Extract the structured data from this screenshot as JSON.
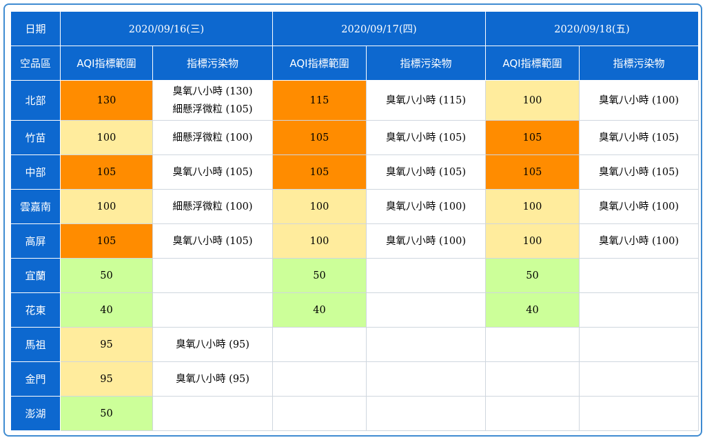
{
  "header": {
    "date_label": "日期",
    "region_label": "空品區",
    "dates": [
      "2020/09/16(三)",
      "2020/09/17(四)",
      "2020/09/18(五)"
    ],
    "aqi_range_label": "AQI指標範圍",
    "pollutant_label": "指標污染物"
  },
  "colors": {
    "header_bg": "#0d68cf",
    "orange": "#ff8c00",
    "yellow": "#ffec9d",
    "green": "#ccff99"
  },
  "rows": [
    {
      "region": "北部",
      "days": [
        {
          "aqi": "130",
          "level": "orange",
          "pollutants": [
            "臭氧八小時 (130)",
            "細懸浮微粒 (105)"
          ]
        },
        {
          "aqi": "115",
          "level": "orange",
          "pollutants": [
            "臭氧八小時 (115)"
          ]
        },
        {
          "aqi": "100",
          "level": "yellow",
          "pollutants": [
            "臭氧八小時 (100)"
          ]
        }
      ]
    },
    {
      "region": "竹苗",
      "days": [
        {
          "aqi": "100",
          "level": "yellow",
          "pollutants": [
            "細懸浮微粒 (100)"
          ]
        },
        {
          "aqi": "105",
          "level": "orange",
          "pollutants": [
            "臭氧八小時 (105)"
          ]
        },
        {
          "aqi": "105",
          "level": "orange",
          "pollutants": [
            "臭氧八小時 (105)"
          ]
        }
      ]
    },
    {
      "region": "中部",
      "days": [
        {
          "aqi": "105",
          "level": "orange",
          "pollutants": [
            "臭氧八小時 (105)"
          ]
        },
        {
          "aqi": "105",
          "level": "orange",
          "pollutants": [
            "臭氧八小時 (105)"
          ]
        },
        {
          "aqi": "105",
          "level": "orange",
          "pollutants": [
            "臭氧八小時 (105)"
          ]
        }
      ]
    },
    {
      "region": "雲嘉南",
      "days": [
        {
          "aqi": "100",
          "level": "yellow",
          "pollutants": [
            "細懸浮微粒 (100)"
          ]
        },
        {
          "aqi": "100",
          "level": "yellow",
          "pollutants": [
            "臭氧八小時 (100)"
          ]
        },
        {
          "aqi": "100",
          "level": "yellow",
          "pollutants": [
            "臭氧八小時 (100)"
          ]
        }
      ]
    },
    {
      "region": "高屏",
      "days": [
        {
          "aqi": "105",
          "level": "orange",
          "pollutants": [
            "臭氧八小時 (105)"
          ]
        },
        {
          "aqi": "100",
          "level": "yellow",
          "pollutants": [
            "臭氧八小時 (100)"
          ]
        },
        {
          "aqi": "100",
          "level": "yellow",
          "pollutants": [
            "臭氧八小時 (100)"
          ]
        }
      ]
    },
    {
      "region": "宜蘭",
      "days": [
        {
          "aqi": "50",
          "level": "green",
          "pollutants": []
        },
        {
          "aqi": "50",
          "level": "green",
          "pollutants": []
        },
        {
          "aqi": "50",
          "level": "green",
          "pollutants": []
        }
      ]
    },
    {
      "region": "花東",
      "days": [
        {
          "aqi": "40",
          "level": "green",
          "pollutants": []
        },
        {
          "aqi": "40",
          "level": "green",
          "pollutants": []
        },
        {
          "aqi": "40",
          "level": "green",
          "pollutants": []
        }
      ]
    },
    {
      "region": "馬祖",
      "days": [
        {
          "aqi": "95",
          "level": "yellow",
          "pollutants": [
            "臭氧八小時 (95)"
          ]
        },
        {
          "aqi": "",
          "level": "white",
          "pollutants": []
        },
        {
          "aqi": "",
          "level": "white",
          "pollutants": []
        }
      ]
    },
    {
      "region": "金門",
      "days": [
        {
          "aqi": "95",
          "level": "yellow",
          "pollutants": [
            "臭氧八小時 (95)"
          ]
        },
        {
          "aqi": "",
          "level": "white",
          "pollutants": []
        },
        {
          "aqi": "",
          "level": "white",
          "pollutants": []
        }
      ]
    },
    {
      "region": "澎湖",
      "days": [
        {
          "aqi": "50",
          "level": "green",
          "pollutants": []
        },
        {
          "aqi": "",
          "level": "white",
          "pollutants": []
        },
        {
          "aqi": "",
          "level": "white",
          "pollutants": []
        }
      ]
    }
  ]
}
